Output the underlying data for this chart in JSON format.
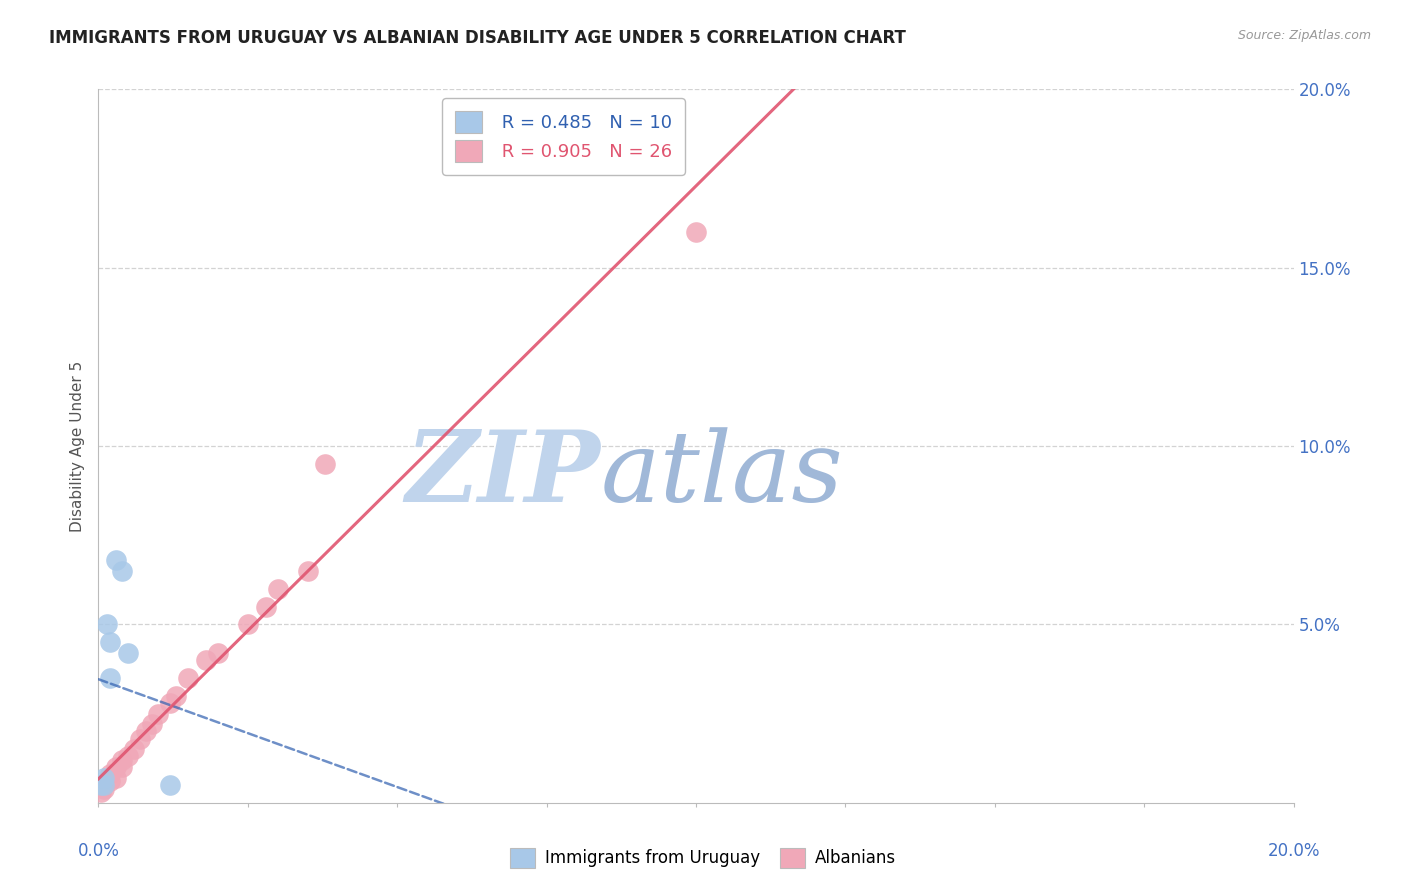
{
  "title": "IMMIGRANTS FROM URUGUAY VS ALBANIAN DISABILITY AGE UNDER 5 CORRELATION CHART",
  "source": "Source: ZipAtlas.com",
  "ylabel": "Disability Age Under 5",
  "xlim": [
    0.0,
    0.2
  ],
  "ylim": [
    0.0,
    0.2
  ],
  "yticks": [
    0.05,
    0.1,
    0.15,
    0.2
  ],
  "ytick_labels": [
    "5.0%",
    "10.0%",
    "15.0%",
    "20.0%"
  ],
  "legend_R_blue": "R = 0.485",
  "legend_N_blue": "N = 10",
  "legend_R_pink": "R = 0.905",
  "legend_N_pink": "N = 26",
  "blue_scatter_x": [
    0.0005,
    0.001,
    0.001,
    0.0015,
    0.002,
    0.002,
    0.003,
    0.004,
    0.005,
    0.012
  ],
  "blue_scatter_y": [
    0.005,
    0.005,
    0.007,
    0.05,
    0.035,
    0.045,
    0.068,
    0.065,
    0.042,
    0.005
  ],
  "pink_scatter_x": [
    0.0005,
    0.001,
    0.001,
    0.002,
    0.002,
    0.003,
    0.003,
    0.004,
    0.004,
    0.005,
    0.006,
    0.007,
    0.008,
    0.009,
    0.01,
    0.012,
    0.013,
    0.015,
    0.018,
    0.02,
    0.025,
    0.028,
    0.03,
    0.035,
    0.038,
    0.1
  ],
  "pink_scatter_y": [
    0.003,
    0.004,
    0.005,
    0.006,
    0.008,
    0.007,
    0.01,
    0.01,
    0.012,
    0.013,
    0.015,
    0.018,
    0.02,
    0.022,
    0.025,
    0.028,
    0.03,
    0.035,
    0.04,
    0.042,
    0.05,
    0.055,
    0.06,
    0.065,
    0.095,
    0.16
  ],
  "blue_color": "#A8C8E8",
  "pink_color": "#F0A8B8",
  "blue_line_color": "#3060B0",
  "pink_line_color": "#E05570",
  "background_color": "#FFFFFF",
  "grid_color": "#C8C8C8",
  "watermark_zip_color": "#C0D4EC",
  "watermark_atlas_color": "#A0B8D8",
  "title_fontsize": 12,
  "axis_label_fontsize": 11,
  "tick_fontsize": 12
}
